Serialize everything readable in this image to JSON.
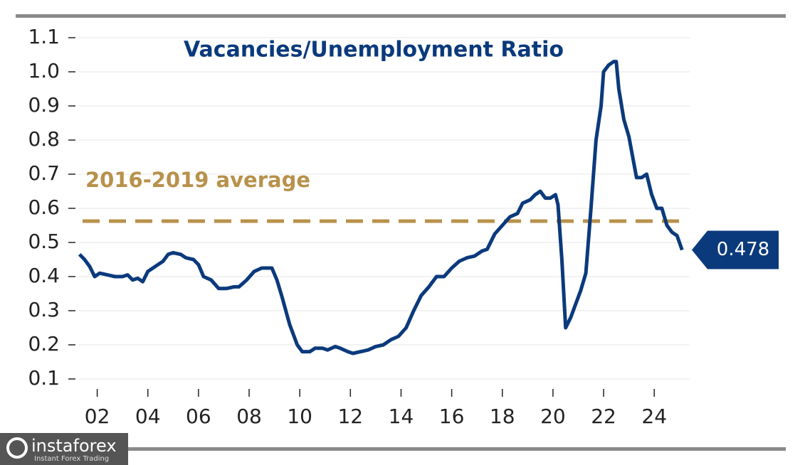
{
  "chart_data": {
    "type": "line",
    "title": "Vacancies/Unemployment Ratio",
    "x": [
      2001.3,
      2001.5,
      2001.7,
      2001.9,
      2002.1,
      2002.4,
      2002.7,
      2003.0,
      2003.2,
      2003.4,
      2003.6,
      2003.8,
      2004.0,
      2004.3,
      2004.6,
      2004.8,
      2005.0,
      2005.3,
      2005.5,
      2005.8,
      2006.0,
      2006.2,
      2006.5,
      2006.8,
      2007.1,
      2007.4,
      2007.6,
      2007.9,
      2008.2,
      2008.5,
      2008.7,
      2008.9,
      2009.1,
      2009.3,
      2009.6,
      2009.9,
      2010.1,
      2010.4,
      2010.6,
      2010.9,
      2011.1,
      2011.4,
      2011.6,
      2011.9,
      2012.1,
      2012.4,
      2012.7,
      2013.0,
      2013.3,
      2013.6,
      2013.9,
      2014.2,
      2014.5,
      2014.8,
      2015.1,
      2015.4,
      2015.7,
      2016.0,
      2016.3,
      2016.6,
      2016.9,
      2017.2,
      2017.4,
      2017.7,
      2018.0,
      2018.3,
      2018.6,
      2018.8,
      2019.1,
      2019.3,
      2019.5,
      2019.7,
      2019.9,
      2020.1,
      2020.2,
      2020.35,
      2020.5,
      2020.7,
      2020.9,
      2021.1,
      2021.3,
      2021.5,
      2021.7,
      2021.9,
      2022.0,
      2022.2,
      2022.4,
      2022.5,
      2022.6,
      2022.8,
      2023.0,
      2023.3,
      2023.5,
      2023.7,
      2023.9,
      2024.1,
      2024.3,
      2024.5,
      2024.7,
      2024.9,
      2025.1
    ],
    "values": [
      0.465,
      0.45,
      0.43,
      0.4,
      0.41,
      0.405,
      0.4,
      0.4,
      0.405,
      0.39,
      0.395,
      0.385,
      0.415,
      0.43,
      0.445,
      0.465,
      0.47,
      0.465,
      0.455,
      0.45,
      0.435,
      0.4,
      0.39,
      0.365,
      0.365,
      0.37,
      0.37,
      0.39,
      0.415,
      0.425,
      0.425,
      0.425,
      0.39,
      0.34,
      0.26,
      0.2,
      0.18,
      0.18,
      0.19,
      0.19,
      0.185,
      0.195,
      0.19,
      0.18,
      0.175,
      0.18,
      0.185,
      0.195,
      0.2,
      0.215,
      0.225,
      0.25,
      0.3,
      0.345,
      0.37,
      0.4,
      0.4,
      0.425,
      0.445,
      0.455,
      0.46,
      0.475,
      0.48,
      0.525,
      0.55,
      0.575,
      0.585,
      0.615,
      0.625,
      0.64,
      0.65,
      0.63,
      0.63,
      0.64,
      0.61,
      0.45,
      0.25,
      0.28,
      0.32,
      0.36,
      0.41,
      0.6,
      0.8,
      0.9,
      1.0,
      1.02,
      1.03,
      1.03,
      0.95,
      0.86,
      0.81,
      0.69,
      0.69,
      0.7,
      0.64,
      0.6,
      0.6,
      0.55,
      0.53,
      0.52,
      0.478
    ],
    "color": "#0b3a7c",
    "xlim": [
      2001.0,
      2025.4
    ],
    "xticks": [
      {
        "value": 2002,
        "label": "02"
      },
      {
        "value": 2004,
        "label": "04"
      },
      {
        "value": 2006,
        "label": "06"
      },
      {
        "value": 2008,
        "label": "08"
      },
      {
        "value": 2010,
        "label": "10"
      },
      {
        "value": 2012,
        "label": "12"
      },
      {
        "value": 2014,
        "label": "14"
      },
      {
        "value": 2016,
        "label": "16"
      },
      {
        "value": 2018,
        "label": "18"
      },
      {
        "value": 2020,
        "label": "20"
      },
      {
        "value": 2022,
        "label": "22"
      },
      {
        "value": 2024,
        "label": "24"
      }
    ],
    "ylim": [
      0.1,
      1.1
    ],
    "yticks": [
      0.1,
      0.2,
      0.3,
      0.4,
      0.5,
      0.6,
      0.7,
      0.8,
      0.9,
      {
        "value": 1,
        "label": "1.0"
      },
      1.1
    ],
    "grid": true,
    "reference_line": {
      "value": 0.5625,
      "label": "2016-2019 average",
      "color": "#b8914b"
    },
    "end_label": 0.478
  },
  "watermark": {
    "name": "instaforex",
    "tagline": "Instant Forex Trading"
  }
}
